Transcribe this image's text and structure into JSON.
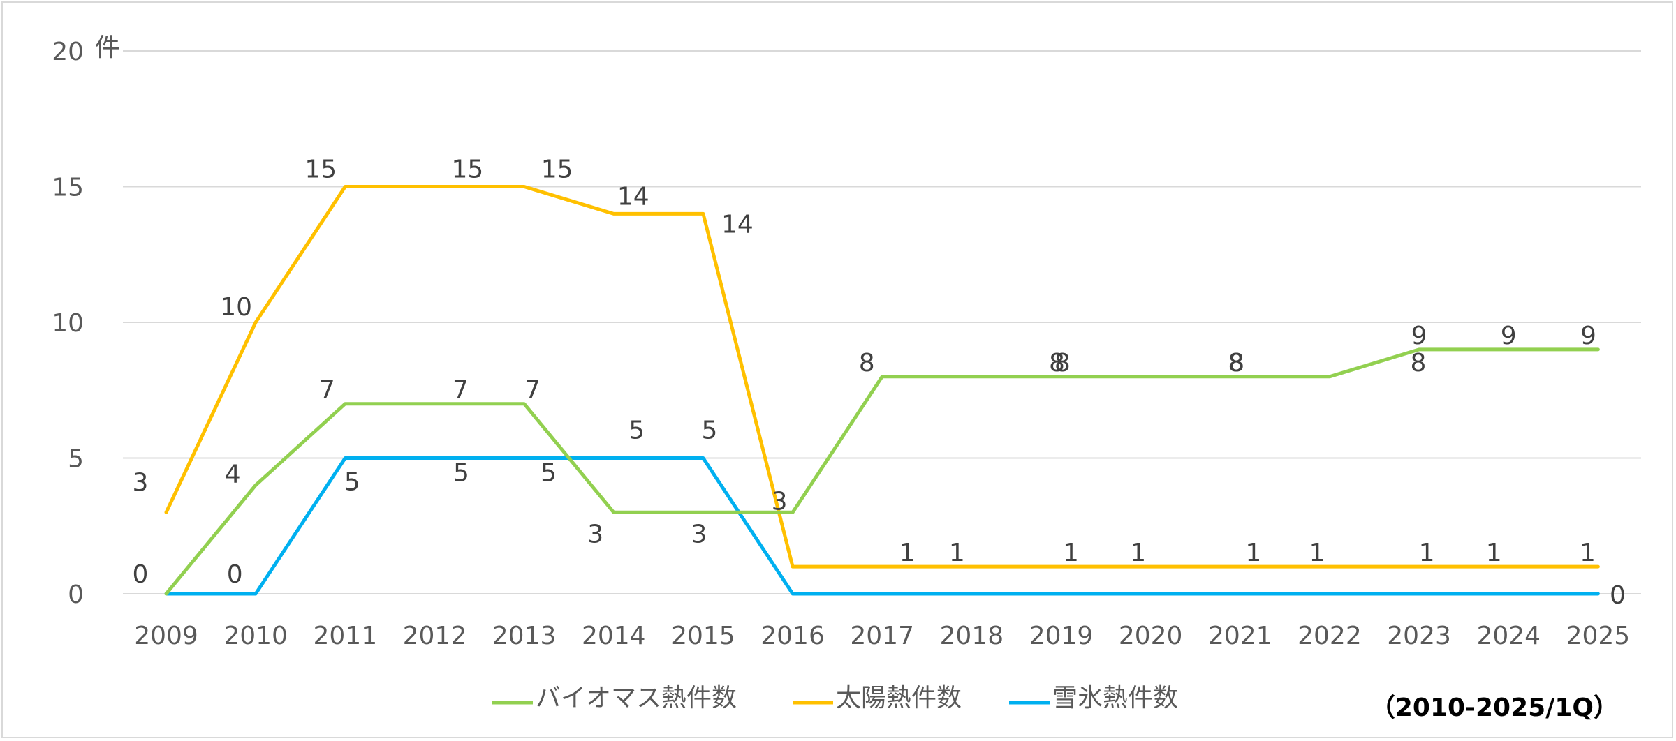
{
  "chart_data": {
    "type": "line",
    "x": [
      "2009",
      "2010",
      "2011",
      "2012",
      "2013",
      "2014",
      "2015",
      "2016",
      "2017",
      "2018",
      "2019",
      "2020",
      "2021",
      "2022",
      "2023",
      "2024",
      "2025"
    ],
    "ylim": [
      0,
      20
    ],
    "yticks": [
      "0",
      "5",
      "10",
      "15",
      "20"
    ],
    "yunit": "件",
    "grid": true,
    "legend_position": "bottom",
    "note": "（2010-2025/1Q）",
    "series": [
      {
        "name": "バイオマス熱件数",
        "color": "#92d050",
        "values": [
          0,
          4,
          7,
          7,
          7,
          3,
          3,
          3,
          8,
          8,
          8,
          8,
          8,
          8,
          9,
          9,
          9
        ]
      },
      {
        "name": "太陽熱件数",
        "color": "#ffc000",
        "values": [
          3,
          10,
          15,
          15,
          15,
          14,
          14,
          1,
          1,
          1,
          1,
          1,
          1,
          1,
          1,
          1,
          1
        ]
      },
      {
        "name": "雪氷熱件数",
        "color": "#00b0f0",
        "values": [
          0,
          0,
          5,
          5,
          5,
          5,
          5,
          0,
          0,
          0,
          0,
          0,
          0,
          0,
          0,
          0,
          0
        ]
      }
    ],
    "data_labels": {
      "バイオマス熱件数": [
        "",
        "4",
        "7",
        "7",
        "7",
        "3",
        "3",
        "3",
        "8",
        "8",
        "8",
        "8",
        "8",
        "8",
        "9",
        "9",
        "9"
      ],
      "太陽熱件数": [
        "3",
        "10",
        "15",
        "15",
        "15",
        "14",
        "14",
        "",
        "1",
        "1",
        "1",
        "1",
        "1",
        "1",
        "1",
        "1",
        "1"
      ],
      "雪氷熱件数": [
        "0",
        "0",
        "5",
        "5",
        "5",
        "5",
        "5",
        "",
        "",
        "",
        "",
        "",
        "",
        "",
        "",
        "",
        "0"
      ]
    }
  }
}
